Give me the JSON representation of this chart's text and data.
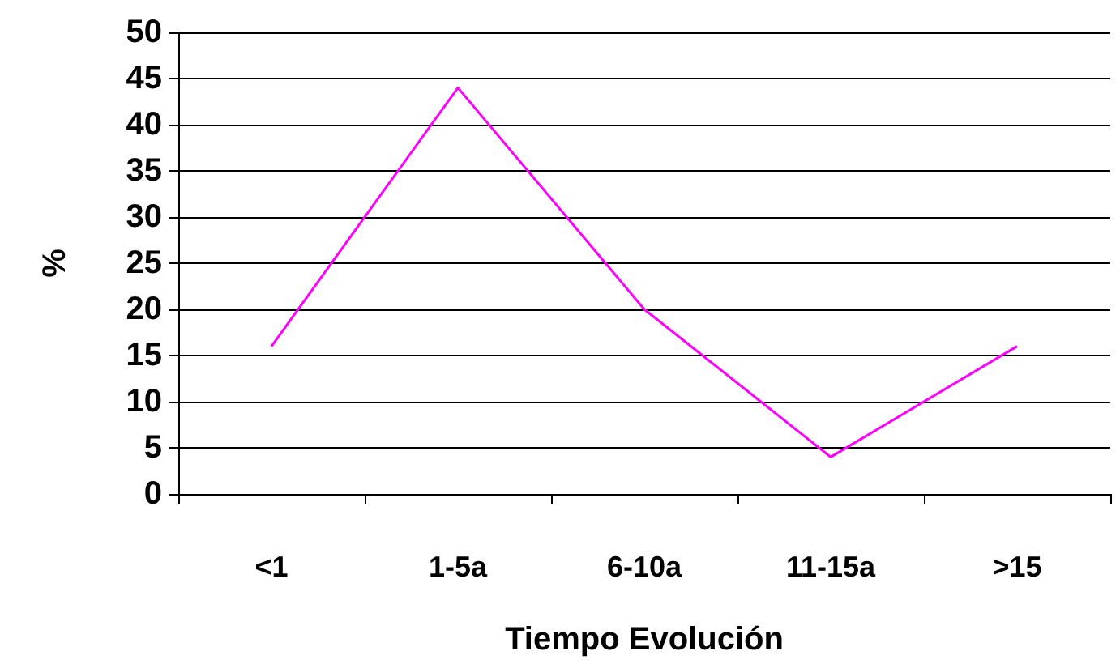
{
  "chart_data": {
    "type": "line",
    "xlabel": "Tiempo Evolución",
    "ylabel": "%",
    "categories": [
      "<1",
      "1-5a",
      "6-10a",
      "11-15a",
      ">15"
    ],
    "series": [
      {
        "color": "#ff00ff",
        "values": [
          16,
          44,
          20,
          4,
          16
        ]
      }
    ],
    "ylim": [
      0,
      50
    ],
    "yticks": [
      0,
      5,
      10,
      15,
      20,
      25,
      30,
      35,
      40,
      45,
      50
    ],
    "grid": "y",
    "marker": "none",
    "line_style": "solid"
  }
}
